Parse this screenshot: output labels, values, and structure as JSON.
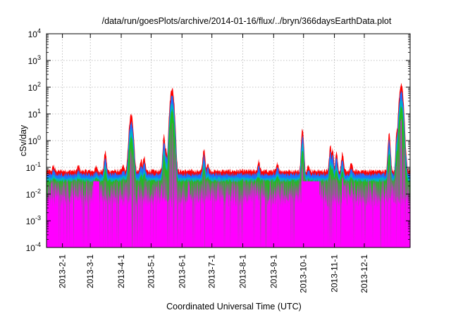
{
  "chart_data": {
    "type": "area",
    "title": "/data/run/goesPlots/archive/2014-01-16/flux/../bryn/366daysEarthData.plot",
    "xlabel": "Coordinated Universal Time (UTC)",
    "ylabel": "cSv/day",
    "yscale": "log",
    "ylim": [
      0.0001,
      10000
    ],
    "xlim": [
      "2013-01-16",
      "2014-01-16"
    ],
    "grid": true,
    "x_ticks": [
      "2013-2-1",
      "2013-3-1",
      "2013-4-1",
      "2013-5-1",
      "2013-6-1",
      "2013-7-1",
      "2013-8-1",
      "2013-9-1",
      "2013-10-1",
      "2013-11-1",
      "2013-12-1"
    ],
    "y_ticks": [
      {
        "value": 0.0001,
        "base": "10",
        "exp": "-4"
      },
      {
        "value": 0.001,
        "base": "10",
        "exp": "-3"
      },
      {
        "value": 0.01,
        "base": "10",
        "exp": "-2"
      },
      {
        "value": 0.1,
        "base": "10",
        "exp": "-1"
      },
      {
        "value": 1,
        "base": "10",
        "exp": "0"
      },
      {
        "value": 10,
        "base": "10",
        "exp": "1"
      },
      {
        "value": 100,
        "base": "10",
        "exp": "2"
      },
      {
        "value": 1000,
        "base": "10",
        "exp": "3"
      },
      {
        "value": 10000,
        "base": "10",
        "exp": "4"
      }
    ],
    "baseline": {
      "red": 0.075,
      "blue": 0.055,
      "cyan": 0.04,
      "green": 0.032,
      "magenta": 0.025
    },
    "spikes": [
      {
        "date": "2013-01-23",
        "peak": 0.12
      },
      {
        "date": "2013-02-17",
        "peak": 0.12
      },
      {
        "date": "2013-03-07",
        "peak": 0.11
      },
      {
        "date": "2013-03-16",
        "peak": 0.4
      },
      {
        "date": "2013-04-03",
        "peak": 0.12
      },
      {
        "date": "2013-04-11",
        "peak": 9.5
      },
      {
        "date": "2013-04-21",
        "peak": 0.2
      },
      {
        "date": "2013-04-24",
        "peak": 0.25
      },
      {
        "date": "2013-05-14",
        "peak": 1.6
      },
      {
        "date": "2013-05-16",
        "peak": 0.5
      },
      {
        "date": "2013-05-22",
        "peak": 95
      },
      {
        "date": "2013-06-23",
        "peak": 0.5
      },
      {
        "date": "2013-06-27",
        "peak": 0.15
      },
      {
        "date": "2013-08-17",
        "peak": 0.18
      },
      {
        "date": "2013-09-05",
        "peak": 0.15
      },
      {
        "date": "2013-09-30",
        "peak": 2.8
      },
      {
        "date": "2013-10-06",
        "peak": 0.12
      },
      {
        "date": "2013-10-28",
        "peak": 0.65
      },
      {
        "date": "2013-10-30",
        "peak": 0.5
      },
      {
        "date": "2013-11-03",
        "peak": 0.4
      },
      {
        "date": "2013-11-09",
        "peak": 0.35
      },
      {
        "date": "2013-11-18",
        "peak": 0.15
      },
      {
        "date": "2013-12-26",
        "peak": 1.9
      },
      {
        "date": "2014-01-03",
        "peak": 3
      },
      {
        "date": "2014-01-07",
        "peak": 130
      },
      {
        "date": "2014-01-11",
        "peak": 0.8
      }
    ],
    "series_colors": {
      "red": "#ff0000",
      "blue": "#1e6fff",
      "cyan": "#00b4c8",
      "green": "#22bb22",
      "magenta": "#ff00ff"
    }
  }
}
